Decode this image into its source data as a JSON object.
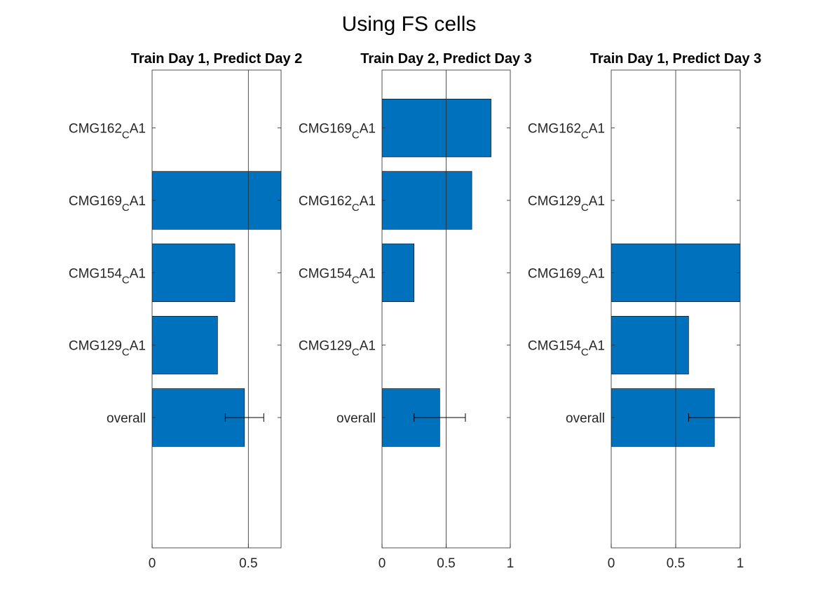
{
  "figure": {
    "title": "Using FS cells"
  },
  "colors": {
    "bar": "#0072BD",
    "axis": "#262626",
    "text": "#000000"
  },
  "chart_data": [
    {
      "type": "bar",
      "orientation": "horizontal",
      "title": "Train Day 1, Predict Day 2",
      "categories": [
        "CMG162_CA1",
        "CMG169_CA1",
        "CMG154_CA1",
        "CMG129_CA1",
        "overall"
      ],
      "tick_labels": [
        {
          "main": "CMG162",
          "sub": "C",
          "rest": "A1"
        },
        {
          "main": "CMG169",
          "sub": "C",
          "rest": "A1"
        },
        {
          "main": "CMG154",
          "sub": "C",
          "rest": "A1"
        },
        {
          "main": "CMG129",
          "sub": "C",
          "rest": "A1"
        },
        {
          "plain": "overall"
        }
      ],
      "values": [
        0,
        0.69,
        0.43,
        0.34,
        0.48
      ],
      "error": {
        "category": "overall",
        "low": 0.38,
        "high": 0.58
      },
      "xlim": [
        0,
        0.67
      ],
      "xticks": [
        0,
        0.5
      ],
      "xtick_labels": [
        "0",
        "0.5"
      ],
      "grid_x": [
        0.5
      ],
      "grid": false,
      "legend": "none"
    },
    {
      "type": "bar",
      "orientation": "horizontal",
      "title": "Train Day 2, Predict Day 3",
      "categories": [
        "CMG169_CA1",
        "CMG162_CA1",
        "CMG154_CA1",
        "CMG129_CA1",
        "overall"
      ],
      "tick_labels": [
        {
          "main": "CMG169",
          "sub": "C",
          "rest": "A1"
        },
        {
          "main": "CMG162",
          "sub": "C",
          "rest": "A1"
        },
        {
          "main": "CMG154",
          "sub": "C",
          "rest": "A1"
        },
        {
          "main": "CMG129",
          "sub": "C",
          "rest": "A1"
        },
        {
          "plain": "overall"
        }
      ],
      "values": [
        0.85,
        0.7,
        0.25,
        0,
        0.45
      ],
      "error": {
        "category": "overall",
        "low": 0.25,
        "high": 0.65
      },
      "xlim": [
        0,
        1
      ],
      "xticks": [
        0,
        0.5,
        1
      ],
      "xtick_labels": [
        "0",
        "0.5",
        "1"
      ],
      "grid_x": [
        0.5
      ],
      "grid": false,
      "legend": "none"
    },
    {
      "type": "bar",
      "orientation": "horizontal",
      "title": "Train Day 1, Predict Day 3",
      "categories": [
        "CMG162_CA1",
        "CMG129_CA1",
        "CMG169_CA1",
        "CMG154_CA1",
        "overall"
      ],
      "tick_labels": [
        {
          "main": "CMG162",
          "sub": "C",
          "rest": "A1"
        },
        {
          "main": "CMG129",
          "sub": "C",
          "rest": "A1"
        },
        {
          "main": "CMG169",
          "sub": "C",
          "rest": "A1"
        },
        {
          "main": "CMG154",
          "sub": "C",
          "rest": "A1"
        },
        {
          "plain": "overall"
        }
      ],
      "values": [
        0,
        0,
        1.0,
        0.6,
        0.8
      ],
      "error": {
        "category": "overall",
        "low": 0.6,
        "high": 1.0
      },
      "xlim": [
        0,
        1
      ],
      "xticks": [
        0,
        0.5,
        1
      ],
      "xtick_labels": [
        "0",
        "0.5",
        "1"
      ],
      "grid_x": [
        0.5
      ],
      "grid": false,
      "legend": "none"
    }
  ]
}
